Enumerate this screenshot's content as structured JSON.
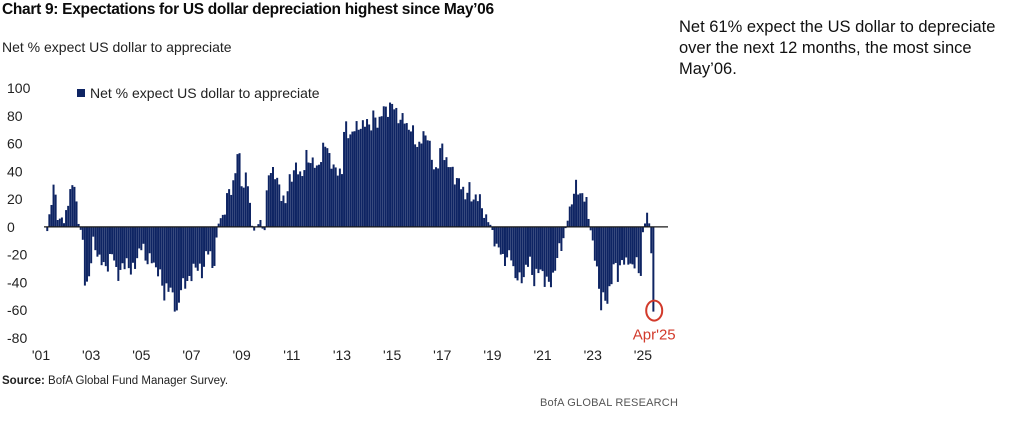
{
  "header": {
    "title": "Chart 9: Expectations for US dollar depreciation highest since May’06",
    "subtitle": "Net % expect US dollar to appreciate"
  },
  "side_note": "Net 61% expect the US dollar to depreciate over the next 12 months, the most since May’06.",
  "footer": {
    "source_label": "Source:",
    "source_text": " BofA Global Fund Manager Survey.",
    "brand": "BofA GLOBAL RESEARCH"
  },
  "colors": {
    "bar": "#0e2463",
    "zero_line": "#1a1a1a",
    "annotation": "#d23a2b"
  },
  "chart_data": {
    "type": "bar",
    "title": "Chart 9: Expectations for US dollar depreciation highest since May’06",
    "subtitle": "Net % expect US dollar to appreciate",
    "xlabel": "",
    "ylabel": "",
    "ylim": [
      -80,
      100
    ],
    "yticks": [
      100,
      80,
      60,
      40,
      20,
      0,
      -20,
      -40,
      -60,
      -80
    ],
    "xlim": [
      2001.0,
      2026.0
    ],
    "xtick_labels": [
      "'01",
      "'03",
      "'05",
      "'07",
      "'09",
      "'11",
      "'13",
      "'15",
      "'17",
      "'19",
      "'21",
      "'23",
      "'25"
    ],
    "xtick_years": [
      2001,
      2003,
      2005,
      2007,
      2009,
      2011,
      2013,
      2015,
      2017,
      2019,
      2021,
      2023,
      2025
    ],
    "grid": false,
    "legend": {
      "placement": "top-left"
    },
    "series": [
      {
        "name": "Net % expect US dollar to appreciate",
        "anchors": [
          [
            2001.25,
            -3
          ],
          [
            2001.4,
            20
          ],
          [
            2001.55,
            27
          ],
          [
            2001.7,
            3
          ],
          [
            2001.85,
            10
          ],
          [
            2001.95,
            -2
          ],
          [
            2002.05,
            20
          ],
          [
            2002.2,
            28
          ],
          [
            2002.35,
            29
          ],
          [
            2002.45,
            8
          ],
          [
            2002.55,
            2
          ],
          [
            2002.65,
            -10
          ],
          [
            2002.75,
            -40
          ],
          [
            2002.85,
            -40
          ],
          [
            2002.95,
            -30
          ],
          [
            2003.1,
            -12
          ],
          [
            2003.3,
            -20
          ],
          [
            2003.5,
            -30
          ],
          [
            2003.7,
            -25
          ],
          [
            2003.85,
            -20
          ],
          [
            2004.0,
            -30
          ],
          [
            2004.15,
            -35
          ],
          [
            2004.3,
            -28
          ],
          [
            2004.45,
            -22
          ],
          [
            2004.6,
            -37
          ],
          [
            2004.75,
            -25
          ],
          [
            2004.9,
            -18
          ],
          [
            2005.05,
            -15
          ],
          [
            2005.2,
            -22
          ],
          [
            2005.35,
            -25
          ],
          [
            2005.5,
            -26
          ],
          [
            2005.65,
            -30
          ],
          [
            2005.8,
            -40
          ],
          [
            2005.9,
            -50
          ],
          [
            2006.0,
            -42
          ],
          [
            2006.1,
            -45
          ],
          [
            2006.25,
            -50
          ],
          [
            2006.35,
            -55
          ],
          [
            2006.45,
            -65
          ],
          [
            2006.55,
            -48
          ],
          [
            2006.65,
            -40
          ],
          [
            2006.8,
            -38
          ],
          [
            2006.95,
            -42
          ],
          [
            2007.1,
            -25
          ],
          [
            2007.25,
            -30
          ],
          [
            2007.4,
            -36
          ],
          [
            2007.55,
            -20
          ],
          [
            2007.7,
            -18
          ],
          [
            2007.85,
            -30
          ],
          [
            2008.0,
            -12
          ],
          [
            2008.1,
            5
          ],
          [
            2008.25,
            8
          ],
          [
            2008.4,
            20
          ],
          [
            2008.55,
            25
          ],
          [
            2008.7,
            35
          ],
          [
            2008.85,
            53
          ],
          [
            2008.95,
            45
          ],
          [
            2009.05,
            25
          ],
          [
            2009.15,
            38
          ],
          [
            2009.25,
            30
          ],
          [
            2009.35,
            10
          ],
          [
            2009.45,
            -3
          ],
          [
            2009.6,
            0
          ],
          [
            2009.75,
            5
          ],
          [
            2009.9,
            -6
          ],
          [
            2010.0,
            20
          ],
          [
            2010.1,
            40
          ],
          [
            2010.2,
            45
          ],
          [
            2010.3,
            38
          ],
          [
            2010.45,
            30
          ],
          [
            2010.6,
            25
          ],
          [
            2010.75,
            15
          ],
          [
            2010.9,
            35
          ],
          [
            2011.05,
            40
          ],
          [
            2011.25,
            41
          ],
          [
            2011.45,
            38
          ],
          [
            2011.6,
            50
          ],
          [
            2011.8,
            49
          ],
          [
            2012.0,
            40
          ],
          [
            2012.2,
            55
          ],
          [
            2012.4,
            58
          ],
          [
            2012.55,
            50
          ],
          [
            2012.7,
            38
          ],
          [
            2012.85,
            42
          ],
          [
            2013.0,
            40
          ],
          [
            2013.1,
            72
          ],
          [
            2013.25,
            70
          ],
          [
            2013.4,
            65
          ],
          [
            2013.55,
            72
          ],
          [
            2013.7,
            75
          ],
          [
            2013.85,
            70
          ],
          [
            2014.0,
            78
          ],
          [
            2014.15,
            72
          ],
          [
            2014.3,
            80
          ],
          [
            2014.45,
            75
          ],
          [
            2014.6,
            82
          ],
          [
            2014.75,
            85
          ],
          [
            2014.9,
            87
          ],
          [
            2015.05,
            86
          ],
          [
            2015.2,
            83
          ],
          [
            2015.35,
            75
          ],
          [
            2015.5,
            78
          ],
          [
            2015.65,
            72
          ],
          [
            2015.8,
            68
          ],
          [
            2015.95,
            62
          ],
          [
            2016.1,
            58
          ],
          [
            2016.25,
            65
          ],
          [
            2016.4,
            70
          ],
          [
            2016.55,
            50
          ],
          [
            2016.7,
            40
          ],
          [
            2016.85,
            48
          ],
          [
            2017.0,
            57
          ],
          [
            2017.15,
            50
          ],
          [
            2017.3,
            42
          ],
          [
            2017.45,
            38
          ],
          [
            2017.6,
            35
          ],
          [
            2017.75,
            28
          ],
          [
            2017.9,
            24
          ],
          [
            2018.05,
            28
          ],
          [
            2018.2,
            18
          ],
          [
            2018.35,
            25
          ],
          [
            2018.5,
            17
          ],
          [
            2018.65,
            12
          ],
          [
            2018.8,
            5
          ],
          [
            2018.95,
            0
          ],
          [
            2019.05,
            -5
          ],
          [
            2019.15,
            -15
          ],
          [
            2019.3,
            -18
          ],
          [
            2019.45,
            -22
          ],
          [
            2019.6,
            -24
          ],
          [
            2019.75,
            -20
          ],
          [
            2019.9,
            -35
          ],
          [
            2020.05,
            -40
          ],
          [
            2020.2,
            -35
          ],
          [
            2020.35,
            -30
          ],
          [
            2020.5,
            -25
          ],
          [
            2020.65,
            -38
          ],
          [
            2020.8,
            -35
          ],
          [
            2020.95,
            -28
          ],
          [
            2021.1,
            -40
          ],
          [
            2021.25,
            -42
          ],
          [
            2021.4,
            -35
          ],
          [
            2021.55,
            -28
          ],
          [
            2021.7,
            -12
          ],
          [
            2021.85,
            -8
          ],
          [
            2021.95,
            2
          ],
          [
            2022.05,
            8
          ],
          [
            2022.15,
            20
          ],
          [
            2022.3,
            28
          ],
          [
            2022.45,
            25
          ],
          [
            2022.6,
            25
          ],
          [
            2022.75,
            15
          ],
          [
            2022.85,
            5
          ],
          [
            2022.95,
            -5
          ],
          [
            2023.05,
            -20
          ],
          [
            2023.2,
            -35
          ],
          [
            2023.3,
            -55
          ],
          [
            2023.4,
            -50
          ],
          [
            2023.55,
            -58
          ],
          [
            2023.7,
            -40
          ],
          [
            2023.85,
            -28
          ],
          [
            2024.0,
            -35
          ],
          [
            2024.15,
            -22
          ],
          [
            2024.3,
            -30
          ],
          [
            2024.45,
            -20
          ],
          [
            2024.6,
            -32
          ],
          [
            2024.75,
            -25
          ],
          [
            2024.9,
            -35
          ],
          [
            2025.0,
            -10
          ],
          [
            2025.1,
            5
          ],
          [
            2025.2,
            15
          ],
          [
            2025.28,
            -5
          ],
          [
            2025.35,
            -18
          ],
          [
            2025.45,
            -61
          ]
        ]
      }
    ],
    "annotation": {
      "label": "Apr'25",
      "x": 2025.45,
      "y": -61
    }
  }
}
